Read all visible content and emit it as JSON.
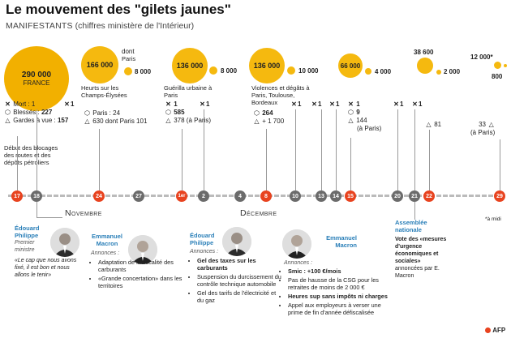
{
  "header": {
    "title": "Le mouvement des \"gilets jaunes\"",
    "subtitle_main": "MANIFESTANTS",
    "subtitle_note": "(chiffres ministère de l'Intérieur)"
  },
  "bubbles": {
    "b17": {
      "value": "290 000",
      "label": "FRANCE"
    },
    "b24": {
      "value": "166 000",
      "dont": "dont",
      "paris_label": "Paris",
      "paris": "8 000",
      "caption": "Heurts sur les Champs-Élysées"
    },
    "b1": {
      "value": "136 000",
      "paris": "8 000",
      "caption": "Guérilla urbaine à Paris"
    },
    "b8": {
      "value": "136 000",
      "paris": "10 000",
      "caption": "Violences et dégâts à Paris, Toulouse, Bordeaux"
    },
    "b15": {
      "value": "66 000",
      "paris": "4 000"
    },
    "b22": {
      "value": "38 600",
      "paris": "2 000"
    },
    "b29": {
      "value": "12 000*",
      "paris": "800"
    }
  },
  "stats": {
    "s17": {
      "dead": "Mort : 1",
      "injured_label": "Blessés :",
      "injured": "227",
      "custody_label": "Gardes à vue :",
      "custody": "157"
    },
    "s18": {
      "dead": "1"
    },
    "s24": {
      "injured": "Paris : 24",
      "custody": "630 dont Paris 101"
    },
    "s1": {
      "dead": "1",
      "injured": "585",
      "custody": "378 (à Paris)",
      "dead_b": "1"
    },
    "s8": {
      "injured": "264",
      "custody": "+ 1 700",
      "dead_a": "1",
      "dead_b": "1",
      "dead_c": "1",
      "dead_d": "1"
    },
    "s15": {
      "dead": "1",
      "injured": "9",
      "custody": "144",
      "custody_note": "(à Paris)",
      "dead_b": "1",
      "dead_c": "1"
    },
    "s22": {
      "custody": "81"
    },
    "s29": {
      "custody": "33",
      "custody_note": "(à Paris)"
    }
  },
  "note_start": "Début des blocages des routes et des dépôts pétroliers",
  "timeline": {
    "dates": [
      "17",
      "18",
      "24",
      "27",
      "1er",
      "2",
      "4",
      "8",
      "10",
      "13",
      "14",
      "15",
      "20",
      "21",
      "22",
      "29"
    ],
    "months": [
      "Novembre",
      "Décembre"
    ],
    "footnote": "*à midi"
  },
  "people": {
    "philippe1": {
      "first": "Édouard",
      "last": "Philippe",
      "role": "Premier ministre",
      "quote": "«Le cap que nous avons fixé, il est bon et nous allons le tenir»"
    },
    "macron1": {
      "first": "Emmanuel",
      "last": "Macron",
      "announces": "Annonces :",
      "items": [
        "Adaptation de la fiscalité des carburants",
        "«Grande concertation» dans les territoires"
      ]
    },
    "philippe2": {
      "first": "Édouard",
      "last": "Philippe",
      "announces": "Annonces :",
      "items": [
        "Gel des taxes sur les carburants",
        "Suspension du durcissement du contrôle technique automobile",
        "Gel des tarifs de l'électricité et du gaz"
      ]
    },
    "macron2": {
      "first": "Emmanuel",
      "last": "Macron",
      "announces": "Annonces :",
      "items": [
        "Smic : +100 €/mois",
        "Pas de hausse de la CSG pour les retraites de moins de 2 000 €",
        "Heures sup sans impôts ni charges",
        "Appel aux employeurs à verser une prime de fin d'année défiscalisée"
      ]
    },
    "assemblee": {
      "title1": "Assemblée",
      "title2": "nationale",
      "vote": "Vote des «mesures d'urgence économiques et sociales»",
      "announced": "annoncées par E. Macron"
    }
  },
  "credit": "AFP",
  "colors": {
    "accent": "#f5b90f",
    "red": "#e8431f",
    "grey": "#6b6b6b",
    "blue": "#2a7fb8"
  }
}
